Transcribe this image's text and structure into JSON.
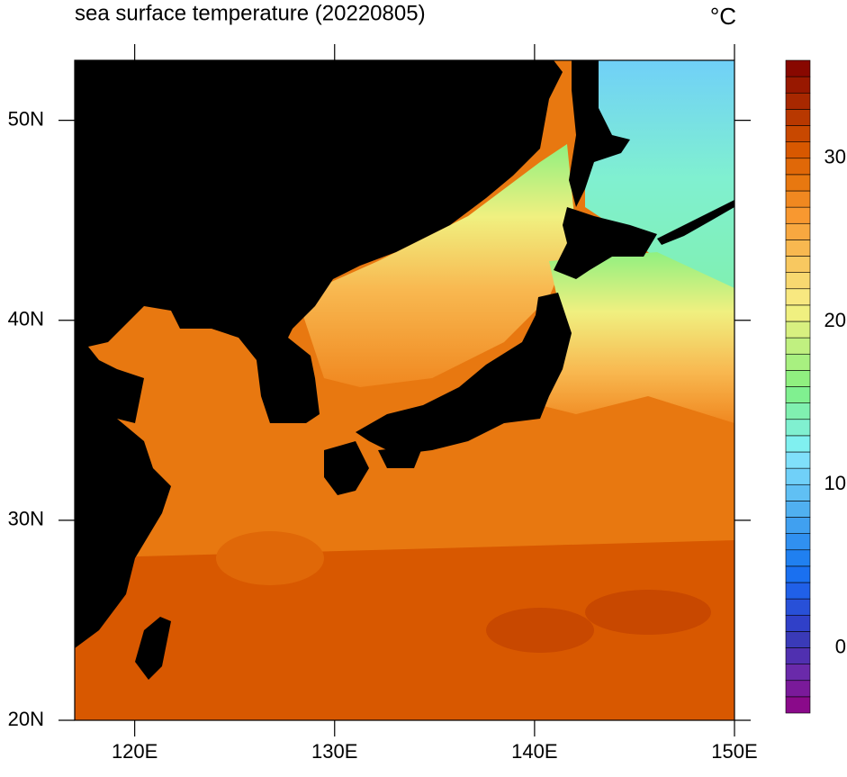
{
  "chart_data": {
    "type": "map",
    "title": "sea surface temperature (20220805)",
    "unit": "°C",
    "xlim": [
      117,
      150
    ],
    "xticks": [
      {
        "value": 120,
        "label": "120E"
      },
      {
        "value": 130,
        "label": "130E"
      },
      {
        "value": 140,
        "label": "140E"
      },
      {
        "value": 150,
        "label": "150E"
      }
    ],
    "ylim": [
      20,
      53
    ],
    "yticks": [
      {
        "value": 20,
        "label": "20N"
      },
      {
        "value": 30,
        "label": "30N"
      },
      {
        "value": 40,
        "label": "40N"
      },
      {
        "value": 50,
        "label": "50N"
      }
    ],
    "colorbar": {
      "lim": [
        -4,
        36
      ],
      "ticks": [
        0,
        10,
        20,
        30
      ],
      "colors": [
        "#8a0a8a",
        "#7a1a9a",
        "#6a2aaa",
        "#5030b0",
        "#3a3ab8",
        "#3040c8",
        "#2850d8",
        "#2060e8",
        "#1a70f0",
        "#2080f0",
        "#3090f0",
        "#40a0f0",
        "#50b0f0",
        "#60c0f4",
        "#70d0f8",
        "#80e0fa",
        "#80f0f0",
        "#80f0d0",
        "#80f0b0",
        "#80f090",
        "#90f080",
        "#a8f080",
        "#c0f080",
        "#d8f080",
        "#f0f080",
        "#f8e880",
        "#f8d870",
        "#f8c860",
        "#f8b850",
        "#f8a840",
        "#f89830",
        "#f08820",
        "#e87810",
        "#e06808",
        "#d85800",
        "#c84800",
        "#b83800",
        "#a82800",
        "#981800",
        "#880800"
      ]
    }
  }
}
